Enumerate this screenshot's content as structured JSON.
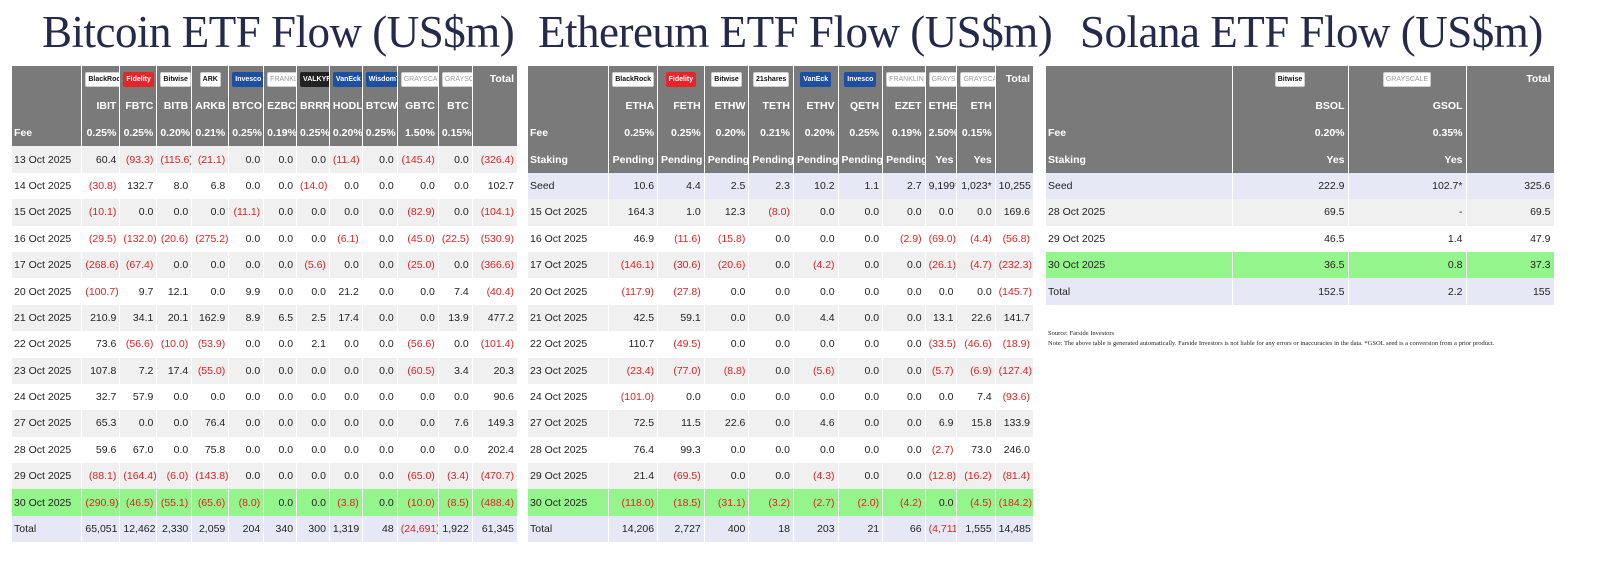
{
  "colors": {
    "header_bg": "#7a7a7a",
    "highlight": "#95f58d",
    "seed_total_bg": "#e6e9f5",
    "negative": "#e11f1f",
    "title": "#262a4a"
  },
  "panels": [
    {
      "key": "btc",
      "title": "Bitcoin ETF Flow (US$m)",
      "issuers": [
        {
          "name": "BlackRock",
          "style": "white"
        },
        {
          "name": "Fidelity",
          "style": "red"
        },
        {
          "name": "Bitwise",
          "style": "white"
        },
        {
          "name": "ARK",
          "style": "white"
        },
        {
          "name": "Invesco",
          "style": "blue"
        },
        {
          "name": "FRANKLIN",
          "style": "grey"
        },
        {
          "name": "VALKYRIE",
          "style": "dark"
        },
        {
          "name": "VanEck",
          "style": "blue"
        },
        {
          "name": "WisdomTree",
          "style": "blue"
        },
        {
          "name": "GRAYSCALE",
          "style": "grey"
        },
        {
          "name": "GRAYSCALE",
          "style": "grey"
        }
      ],
      "total_header": "Total",
      "tickers": [
        "IBIT",
        "FBTC",
        "BITB",
        "ARKB",
        "BTCO",
        "EZBC",
        "BRRR",
        "HODL",
        "BTCW",
        "GBTC",
        "BTC"
      ],
      "header_rows": [
        {
          "label": "Fee",
          "values": [
            "0.25%",
            "0.25%",
            "0.20%",
            "0.21%",
            "0.25%",
            "0.19%",
            "0.25%",
            "0.20%",
            "0.25%",
            "1.50%",
            "0.15%"
          ],
          "total": ""
        }
      ],
      "rows": [
        {
          "date": "13 Oct 2025",
          "values": [
            "60.4",
            "(93.3)",
            "(115.6)",
            "(21.1)",
            "0.0",
            "0.0",
            "0.0",
            "(11.4)",
            "0.0",
            "(145.4)",
            "0.0"
          ],
          "total": "(326.4)"
        },
        {
          "date": "14 Oct 2025",
          "values": [
            "(30.8)",
            "132.7",
            "8.0",
            "6.8",
            "0.0",
            "0.0",
            "(14.0)",
            "0.0",
            "0.0",
            "0.0",
            "0.0"
          ],
          "total": "102.7"
        },
        {
          "date": "15 Oct 2025",
          "values": [
            "(10.1)",
            "0.0",
            "0.0",
            "0.0",
            "(11.1)",
            "0.0",
            "0.0",
            "0.0",
            "0.0",
            "(82.9)",
            "0.0"
          ],
          "total": "(104.1)"
        },
        {
          "date": "16 Oct 2025",
          "values": [
            "(29.5)",
            "(132.0)",
            "(20.6)",
            "(275.2)",
            "0.0",
            "0.0",
            "0.0",
            "(6.1)",
            "0.0",
            "(45.0)",
            "(22.5)"
          ],
          "total": "(530.9)"
        },
        {
          "date": "17 Oct 2025",
          "values": [
            "(268.6)",
            "(67.4)",
            "0.0",
            "0.0",
            "0.0",
            "0.0",
            "(5.6)",
            "0.0",
            "0.0",
            "(25.0)",
            "0.0"
          ],
          "total": "(366.6)"
        },
        {
          "date": "20 Oct 2025",
          "values": [
            "(100.7)",
            "9.7",
            "12.1",
            "0.0",
            "9.9",
            "0.0",
            "0.0",
            "21.2",
            "0.0",
            "0.0",
            "7.4"
          ],
          "total": "(40.4)"
        },
        {
          "date": "21 Oct 2025",
          "values": [
            "210.9",
            "34.1",
            "20.1",
            "162.9",
            "8.9",
            "6.5",
            "2.5",
            "17.4",
            "0.0",
            "0.0",
            "13.9"
          ],
          "total": "477.2"
        },
        {
          "date": "22 Oct 2025",
          "values": [
            "73.6",
            "(56.6)",
            "(10.0)",
            "(53.9)",
            "0.0",
            "0.0",
            "2.1",
            "0.0",
            "0.0",
            "(56.6)",
            "0.0"
          ],
          "total": "(101.4)"
        },
        {
          "date": "23 Oct 2025",
          "values": [
            "107.8",
            "7.2",
            "17.4",
            "(55.0)",
            "0.0",
            "0.0",
            "0.0",
            "0.0",
            "0.0",
            "(60.5)",
            "3.4"
          ],
          "total": "20.3"
        },
        {
          "date": "24 Oct 2025",
          "values": [
            "32.7",
            "57.9",
            "0.0",
            "0.0",
            "0.0",
            "0.0",
            "0.0",
            "0.0",
            "0.0",
            "0.0",
            "0.0"
          ],
          "total": "90.6"
        },
        {
          "date": "27 Oct 2025",
          "values": [
            "65.3",
            "0.0",
            "0.0",
            "76.4",
            "0.0",
            "0.0",
            "0.0",
            "0.0",
            "0.0",
            "0.0",
            "7.6"
          ],
          "total": "149.3"
        },
        {
          "date": "28 Oct 2025",
          "values": [
            "59.6",
            "67.0",
            "0.0",
            "75.8",
            "0.0",
            "0.0",
            "0.0",
            "0.0",
            "0.0",
            "0.0",
            "0.0"
          ],
          "total": "202.4"
        },
        {
          "date": "29 Oct 2025",
          "values": [
            "(88.1)",
            "(164.4)",
            "(6.0)",
            "(143.8)",
            "0.0",
            "0.0",
            "0.0",
            "0.0",
            "0.0",
            "(65.0)",
            "(3.4)"
          ],
          "total": "(470.7)"
        },
        {
          "date": "30 Oct 2025",
          "values": [
            "(290.9)",
            "(46.5)",
            "(55.1)",
            "(65.6)",
            "(8.0)",
            "0.0",
            "0.0",
            "(3.8)",
            "0.0",
            "(10.0)",
            "(8.5)"
          ],
          "total": "(488.4)",
          "highlight": true
        },
        {
          "date": "Total",
          "values": [
            "65,051",
            "12,462",
            "2,330",
            "2,059",
            "204",
            "340",
            "300",
            "1,319",
            "48",
            "(24,691)",
            "1,922"
          ],
          "total": "61,345",
          "kind": "total"
        }
      ]
    },
    {
      "key": "eth",
      "title": "Ethereum ETF Flow (US$m)",
      "issuers": [
        {
          "name": "BlackRock",
          "style": "white"
        },
        {
          "name": "Fidelity",
          "style": "red"
        },
        {
          "name": "Bitwise",
          "style": "white"
        },
        {
          "name": "21shares",
          "style": "white"
        },
        {
          "name": "VanEck",
          "style": "blue"
        },
        {
          "name": "Invesco",
          "style": "blue"
        },
        {
          "name": "FRANKLIN",
          "style": "grey"
        },
        {
          "name": "GRAYSCALE",
          "style": "grey"
        },
        {
          "name": "GRAYSCALE",
          "style": "grey"
        }
      ],
      "total_header": "Total",
      "tickers": [
        "ETHA",
        "FETH",
        "ETHW",
        "TETH",
        "ETHV",
        "QETH",
        "EZET",
        "ETHE",
        "ETH"
      ],
      "header_rows": [
        {
          "label": "Fee",
          "values": [
            "0.25%",
            "0.25%",
            "0.20%",
            "0.21%",
            "0.20%",
            "0.25%",
            "0.19%",
            "2.50%",
            "0.15%"
          ],
          "total": ""
        },
        {
          "label": "Staking",
          "values": [
            "Pending",
            "Pending",
            "Pending",
            "Pending",
            "Pending",
            "Pending",
            "Pending",
            "Yes",
            "Yes"
          ],
          "total": ""
        }
      ],
      "rows": [
        {
          "date": "Seed",
          "values": [
            "10.6",
            "4.4",
            "2.5",
            "2.3",
            "10.2",
            "1.1",
            "2.7",
            "9,199*",
            "1,023*"
          ],
          "total": "10,255",
          "kind": "seed"
        },
        {
          "date": "15 Oct 2025",
          "values": [
            "164.3",
            "1.0",
            "12.3",
            "(8.0)",
            "0.0",
            "0.0",
            "0.0",
            "0.0",
            "0.0"
          ],
          "total": "169.6"
        },
        {
          "date": "16 Oct 2025",
          "values": [
            "46.9",
            "(11.6)",
            "(15.8)",
            "0.0",
            "0.0",
            "0.0",
            "(2.9)",
            "(69.0)",
            "(4.4)"
          ],
          "total": "(56.8)"
        },
        {
          "date": "17 Oct 2025",
          "values": [
            "(146.1)",
            "(30.6)",
            "(20.6)",
            "0.0",
            "(4.2)",
            "0.0",
            "0.0",
            "(26.1)",
            "(4.7)"
          ],
          "total": "(232.3)"
        },
        {
          "date": "20 Oct 2025",
          "values": [
            "(117.9)",
            "(27.8)",
            "0.0",
            "0.0",
            "0.0",
            "0.0",
            "0.0",
            "0.0",
            "0.0"
          ],
          "total": "(145.7)"
        },
        {
          "date": "21 Oct 2025",
          "values": [
            "42.5",
            "59.1",
            "0.0",
            "0.0",
            "4.4",
            "0.0",
            "0.0",
            "13.1",
            "22.6"
          ],
          "total": "141.7"
        },
        {
          "date": "22 Oct 2025",
          "values": [
            "110.7",
            "(49.5)",
            "0.0",
            "0.0",
            "0.0",
            "0.0",
            "0.0",
            "(33.5)",
            "(46.6)"
          ],
          "total": "(18.9)"
        },
        {
          "date": "23 Oct 2025",
          "values": [
            "(23.4)",
            "(77.0)",
            "(8.8)",
            "0.0",
            "(5.6)",
            "0.0",
            "0.0",
            "(5.7)",
            "(6.9)"
          ],
          "total": "(127.4)"
        },
        {
          "date": "24 Oct 2025",
          "values": [
            "(101.0)",
            "0.0",
            "0.0",
            "0.0",
            "0.0",
            "0.0",
            "0.0",
            "0.0",
            "7.4"
          ],
          "total": "(93.6)"
        },
        {
          "date": "27 Oct 2025",
          "values": [
            "72.5",
            "11.5",
            "22.6",
            "0.0",
            "4.6",
            "0.0",
            "0.0",
            "6.9",
            "15.8"
          ],
          "total": "133.9"
        },
        {
          "date": "28 Oct 2025",
          "values": [
            "76.4",
            "99.3",
            "0.0",
            "0.0",
            "0.0",
            "0.0",
            "0.0",
            "(2.7)",
            "73.0"
          ],
          "total": "246.0"
        },
        {
          "date": "29 Oct 2025",
          "values": [
            "21.4",
            "(69.5)",
            "0.0",
            "0.0",
            "(4.3)",
            "0.0",
            "0.0",
            "(12.8)",
            "(16.2)"
          ],
          "total": "(81.4)"
        },
        {
          "date": "30 Oct 2025",
          "values": [
            "(118.0)",
            "(18.5)",
            "(31.1)",
            "(3.2)",
            "(2.7)",
            "(2.0)",
            "(4.2)",
            "0.0",
            "(4.5)"
          ],
          "total": "(184.2)",
          "highlight": true
        },
        {
          "date": "Total",
          "values": [
            "14,206",
            "2,727",
            "400",
            "18",
            "203",
            "21",
            "66",
            "(4,711)",
            "1,555"
          ],
          "total": "14,485",
          "kind": "total"
        }
      ]
    },
    {
      "key": "sol",
      "title": "Solana ETF Flow (US$m)",
      "issuers": [
        {
          "name": "Bitwise",
          "style": "white"
        },
        {
          "name": "GRAYSCALE",
          "style": "grey"
        }
      ],
      "total_header": "Total",
      "tickers": [
        "BSOL",
        "GSOL"
      ],
      "header_rows": [
        {
          "label": "Fee",
          "values": [
            "0.20%",
            "0.35%"
          ],
          "total": ""
        },
        {
          "label": "Staking",
          "values": [
            "Yes",
            "Yes"
          ],
          "total": ""
        }
      ],
      "rows": [
        {
          "date": "Seed",
          "values": [
            "222.9",
            "102.7*"
          ],
          "total": "325.6",
          "kind": "seed"
        },
        {
          "date": "28 Oct 2025",
          "values": [
            "69.5",
            "-"
          ],
          "total": "69.5"
        },
        {
          "date": "29 Oct 2025",
          "values": [
            "46.5",
            "1.4"
          ],
          "total": "47.9"
        },
        {
          "date": "30 Oct 2025",
          "values": [
            "36.5",
            "0.8"
          ],
          "total": "37.3",
          "highlight": true
        },
        {
          "date": "Total",
          "values": [
            "152.5",
            "2.2"
          ],
          "total": "155",
          "kind": "total"
        }
      ]
    }
  ],
  "footnote": {
    "source": "Source: Farside Investors",
    "note": "Note: The above table is generated automatically. Farside Investors is not liable for any errors or inaccuracies in the data. *GSOL seed is a conversion from a prior product."
  }
}
